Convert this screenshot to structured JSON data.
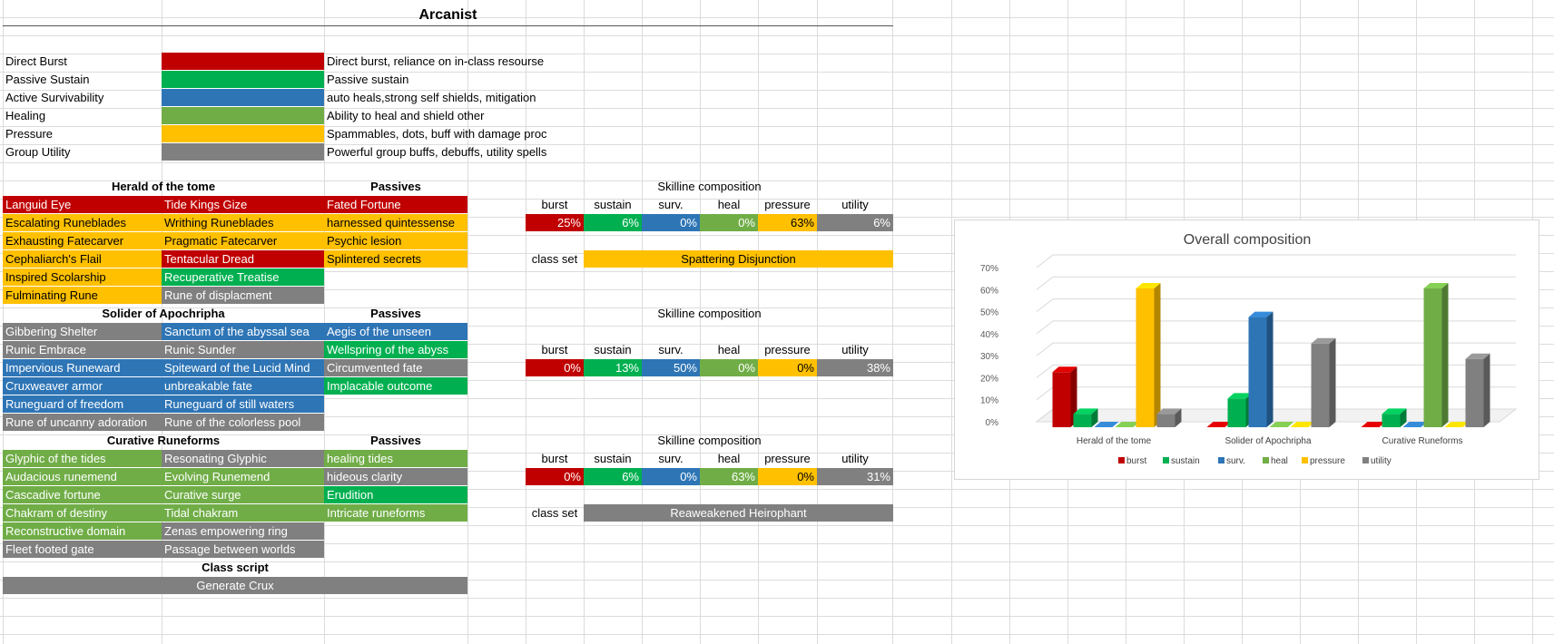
{
  "sheet_title": "Arcanist",
  "colors": {
    "red": "#C00000",
    "green": "#00B050",
    "blue": "#2E75B6",
    "lightgreen": "#70AD47",
    "yellow": "#FFC000",
    "gray": "#808080"
  },
  "legend": [
    {
      "name": "Direct Burst",
      "color": "red",
      "desc": "Direct burst, reliance on in-class resourse"
    },
    {
      "name": "Passive Sustain",
      "color": "green",
      "desc": "Passive sustain"
    },
    {
      "name": "Active Survivability",
      "color": "blue",
      "desc": "auto heals,strong self shields, mitigation"
    },
    {
      "name": "Healing",
      "color": "lightgreen",
      "desc": "Ability to heal and shield other"
    },
    {
      "name": "Pressure",
      "color": "yellow",
      "desc": "Spammables, dots, buff with damage proc"
    },
    {
      "name": "Group Utility",
      "color": "gray",
      "desc": "Powerful group buffs, debuffs, utility spells"
    }
  ],
  "skilllines": [
    {
      "name": "Herald of the tome",
      "passives_header": "Passives",
      "skills": [
        [
          {
            "t": "Languid Eye",
            "c": "red"
          },
          {
            "t": "Tide Kings Gize",
            "c": "red"
          },
          {
            "t": "Fated Fortune",
            "c": "red"
          }
        ],
        [
          {
            "t": "Escalating Runeblades",
            "c": "yellow"
          },
          {
            "t": "Writhing Runeblades",
            "c": "yellow"
          },
          {
            "t": "harnessed quintessense",
            "c": "yellow"
          }
        ],
        [
          {
            "t": "Exhausting Fatecarver",
            "c": "yellow"
          },
          {
            "t": "Pragmatic Fatecarver",
            "c": "yellow"
          },
          {
            "t": "Psychic lesion",
            "c": "yellow"
          }
        ],
        [
          {
            "t": "Cephaliarch's Flail",
            "c": "yellow"
          },
          {
            "t": "Tentacular Dread",
            "c": "red"
          },
          {
            "t": "Splintered secrets",
            "c": "yellow"
          }
        ],
        [
          {
            "t": "Inspired Scolarship",
            "c": "yellow"
          },
          {
            "t": "Recuperative Treatise",
            "c": "green"
          }
        ],
        [
          {
            "t": "Fulminating Rune",
            "c": "yellow"
          },
          {
            "t": "Rune of displacment",
            "c": "gray"
          }
        ]
      ],
      "comp_header": "Skilline composition",
      "comp_labels": [
        "burst",
        "sustain",
        "surv.",
        "heal",
        "pressure",
        "utility"
      ],
      "comp_values": [
        "25%",
        "6%",
        "0%",
        "0%",
        "63%",
        "6%"
      ],
      "class_set_label": "class set",
      "class_set_value": "Spattering Disjunction",
      "class_set_color": "yellow"
    },
    {
      "name": "Solider of Apochripha",
      "passives_header": "Passives",
      "skills": [
        [
          {
            "t": "Gibbering Shelter",
            "c": "gray"
          },
          {
            "t": "Sanctum of the abyssal sea",
            "c": "blue"
          },
          {
            "t": "Aegis of the unseen",
            "c": "blue"
          }
        ],
        [
          {
            "t": "Runic Embrace",
            "c": "gray"
          },
          {
            "t": "Runic Sunder",
            "c": "gray"
          },
          {
            "t": "Wellspring of the abyss",
            "c": "green"
          }
        ],
        [
          {
            "t": "Impervious Runeward",
            "c": "blue"
          },
          {
            "t": "Spiteward of the Lucid Mind",
            "c": "blue"
          },
          {
            "t": "Circumvented fate",
            "c": "gray"
          }
        ],
        [
          {
            "t": "Cruxweaver armor",
            "c": "blue"
          },
          {
            "t": "unbreakable fate",
            "c": "blue"
          },
          {
            "t": "Implacable outcome",
            "c": "green"
          }
        ],
        [
          {
            "t": "Runeguard of freedom",
            "c": "blue"
          },
          {
            "t": "Runeguard of still waters",
            "c": "blue"
          }
        ],
        [
          {
            "t": "Rune of uncanny adoration",
            "c": "gray"
          },
          {
            "t": "Rune of the colorless pool",
            "c": "gray"
          }
        ]
      ],
      "comp_header": "Skilline composition",
      "comp_labels": [
        "burst",
        "sustain",
        "surv.",
        "heal",
        "pressure",
        "utility"
      ],
      "comp_values": [
        "0%",
        "13%",
        "50%",
        "0%",
        "0%",
        "38%"
      ]
    },
    {
      "name": "Curative Runeforms",
      "passives_header": "Passives",
      "skills": [
        [
          {
            "t": "Glyphic of the tides",
            "c": "lightgreen"
          },
          {
            "t": "Resonating Glyphic",
            "c": "gray"
          },
          {
            "t": "healing tides",
            "c": "lightgreen"
          }
        ],
        [
          {
            "t": "Audacious runemend",
            "c": "lightgreen"
          },
          {
            "t": "Evolving Runemend",
            "c": "lightgreen"
          },
          {
            "t": "hideous clarity",
            "c": "gray"
          }
        ],
        [
          {
            "t": "Cascadive fortune",
            "c": "lightgreen"
          },
          {
            "t": "Curative surge",
            "c": "lightgreen"
          },
          {
            "t": "Erudition",
            "c": "green"
          }
        ],
        [
          {
            "t": "Chakram of destiny",
            "c": "lightgreen"
          },
          {
            "t": "Tidal chakram",
            "c": "lightgreen"
          },
          {
            "t": "Intricate runeforms",
            "c": "lightgreen"
          }
        ],
        [
          {
            "t": "Reconstructive domain",
            "c": "lightgreen"
          },
          {
            "t": "Zenas empowering ring",
            "c": "gray"
          }
        ],
        [
          {
            "t": "Fleet footed gate",
            "c": "gray"
          },
          {
            "t": "Passage between worlds",
            "c": "gray"
          }
        ]
      ],
      "comp_header": "Skilline composition",
      "comp_labels": [
        "burst",
        "sustain",
        "surv.",
        "heal",
        "pressure",
        "utility"
      ],
      "comp_values": [
        "0%",
        "6%",
        "0%",
        "63%",
        "0%",
        "31%"
      ],
      "class_set_label": "class set",
      "class_set_value": "Reaweakened Heirophant",
      "class_set_color": "gray"
    }
  ],
  "class_script": {
    "header": "Class script",
    "value": "Generate Crux"
  },
  "chart_data": {
    "type": "bar",
    "title": "Overall composition",
    "categories": [
      "Herald of the tome",
      "Solider of Apochripha",
      "Curative Runeforms"
    ],
    "series": [
      {
        "name": "burst",
        "color": "#C00000",
        "values": [
          25,
          0,
          0
        ]
      },
      {
        "name": "sustain",
        "color": "#00B050",
        "values": [
          6,
          13,
          6
        ]
      },
      {
        "name": "surv.",
        "color": "#2E75B6",
        "values": [
          0,
          50,
          0
        ]
      },
      {
        "name": "heal",
        "color": "#70AD47",
        "values": [
          0,
          0,
          63
        ]
      },
      {
        "name": "pressure",
        "color": "#FFC000",
        "values": [
          63,
          0,
          0
        ]
      },
      {
        "name": "utility",
        "color": "#808080",
        "values": [
          6,
          38,
          31
        ]
      }
    ],
    "y_ticks": [
      "0%",
      "10%",
      "20%",
      "30%",
      "40%",
      "50%",
      "60%",
      "70%"
    ],
    "ylim": [
      0,
      70
    ],
    "legend_position": "bottom",
    "grid": true,
    "style": "3d-column"
  }
}
